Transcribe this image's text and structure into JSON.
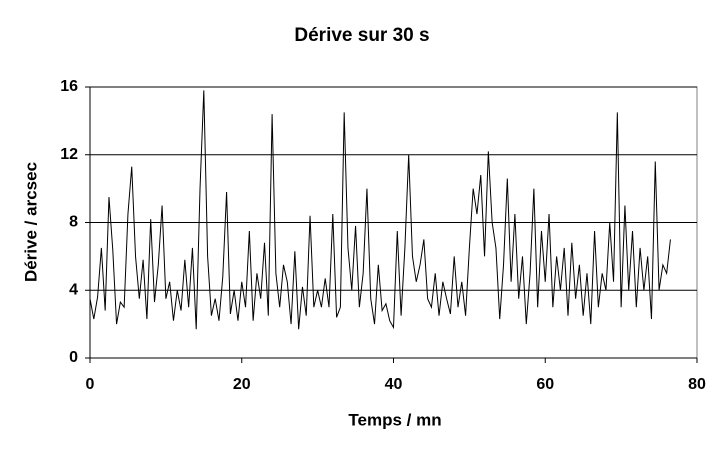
{
  "chart_data": {
    "type": "line",
    "title": "Dérive sur 30 s",
    "x_label": "Temps / mn",
    "y_label": "Dérive / arcsec",
    "x": [
      0,
      0.5,
      1,
      1.5,
      2,
      2.5,
      3,
      3.5,
      4,
      4.5,
      5,
      5.5,
      6,
      6.5,
      7,
      7.5,
      8,
      8.5,
      9,
      9.5,
      10,
      10.5,
      11,
      11.5,
      12,
      12.5,
      13,
      13.5,
      14,
      14.5,
      15,
      15.5,
      16,
      16.5,
      17,
      17.5,
      18,
      18.5,
      19,
      19.5,
      20,
      20.5,
      21,
      21.5,
      22,
      22.5,
      23,
      23.5,
      24,
      24.5,
      25,
      25.5,
      26,
      26.5,
      27,
      27.5,
      28,
      28.5,
      29,
      29.5,
      30,
      30.5,
      31,
      31.5,
      32,
      32.5,
      33,
      33.5,
      34,
      34.5,
      35,
      35.5,
      36,
      36.5,
      37,
      37.5,
      38,
      38.5,
      39,
      39.5,
      40,
      40.5,
      41,
      41.5,
      42,
      42.5,
      43,
      43.5,
      44,
      44.5,
      45,
      45.5,
      46,
      46.5,
      47,
      47.5,
      48,
      48.5,
      49,
      49.5,
      50,
      50.5,
      51,
      51.5,
      52,
      52.5,
      53,
      53.5,
      54,
      54.5,
      55,
      55.5,
      56,
      56.5,
      57,
      57.5,
      58,
      58.5,
      59,
      59.5,
      60,
      60.5,
      61,
      61.5,
      62,
      62.5,
      63,
      63.5,
      64,
      64.5,
      65,
      65.5,
      66,
      66.5,
      67,
      67.5,
      68,
      68.5,
      69,
      69.5,
      70,
      70.5,
      71,
      71.5,
      72,
      72.5,
      73,
      73.5,
      74,
      74.5,
      75,
      75.5,
      76,
      76.5
    ],
    "values": [
      3.5,
      2.3,
      3.6,
      6.5,
      2.8,
      9.5,
      6.4,
      2.0,
      3.3,
      3.0,
      8.5,
      11.3,
      6.0,
      3.5,
      5.8,
      2.3,
      8.2,
      3.3,
      5.5,
      9.0,
      3.5,
      4.5,
      2.2,
      4.0,
      2.8,
      5.8,
      3.0,
      6.5,
      1.7,
      10.0,
      15.8,
      6.0,
      2.5,
      3.5,
      2.2,
      4.8,
      9.8,
      2.6,
      4.0,
      2.2,
      4.5,
      3.0,
      7.5,
      2.2,
      5.0,
      3.5,
      6.8,
      2.5,
      14.4,
      5.0,
      3.0,
      5.5,
      4.5,
      2.0,
      6.3,
      1.7,
      4.2,
      2.5,
      8.4,
      3.0,
      4.0,
      3.0,
      4.7,
      3.0,
      8.5,
      2.4,
      3.0,
      14.5,
      6.5,
      4.0,
      7.8,
      3.0,
      5.0,
      10.0,
      3.5,
      2.0,
      5.5,
      2.8,
      3.2,
      2.2,
      1.8,
      7.5,
      2.5,
      6.5,
      12.0,
      6.0,
      4.5,
      5.5,
      7.0,
      3.5,
      3.0,
      5.0,
      2.5,
      4.5,
      3.5,
      2.6,
      6.0,
      3.0,
      4.5,
      2.5,
      6.5,
      10.0,
      8.5,
      10.8,
      6.0,
      12.2,
      8.0,
      6.5,
      2.3,
      5.5,
      10.6,
      4.5,
      8.5,
      3.5,
      6.0,
      2.0,
      5.0,
      10.0,
      3.0,
      7.5,
      4.5,
      8.5,
      3.0,
      6.0,
      4.0,
      6.5,
      2.5,
      6.8,
      3.5,
      5.5,
      2.5,
      5.0,
      2.0,
      7.5,
      3.0,
      5.0,
      4.0,
      8.0,
      4.5,
      14.5,
      3.0,
      9.0,
      4.0,
      7.5,
      3.0,
      6.5,
      4.0,
      6.0,
      2.3,
      11.6,
      4.0,
      5.5,
      5.0,
      7.0
    ],
    "color": "#000000",
    "xlim": [
      0,
      80
    ],
    "xticks": [
      0,
      20,
      40,
      60,
      80
    ],
    "ylim": [
      0,
      16
    ],
    "yticks": [
      0,
      4,
      8,
      12,
      16
    ],
    "grid": true
  }
}
